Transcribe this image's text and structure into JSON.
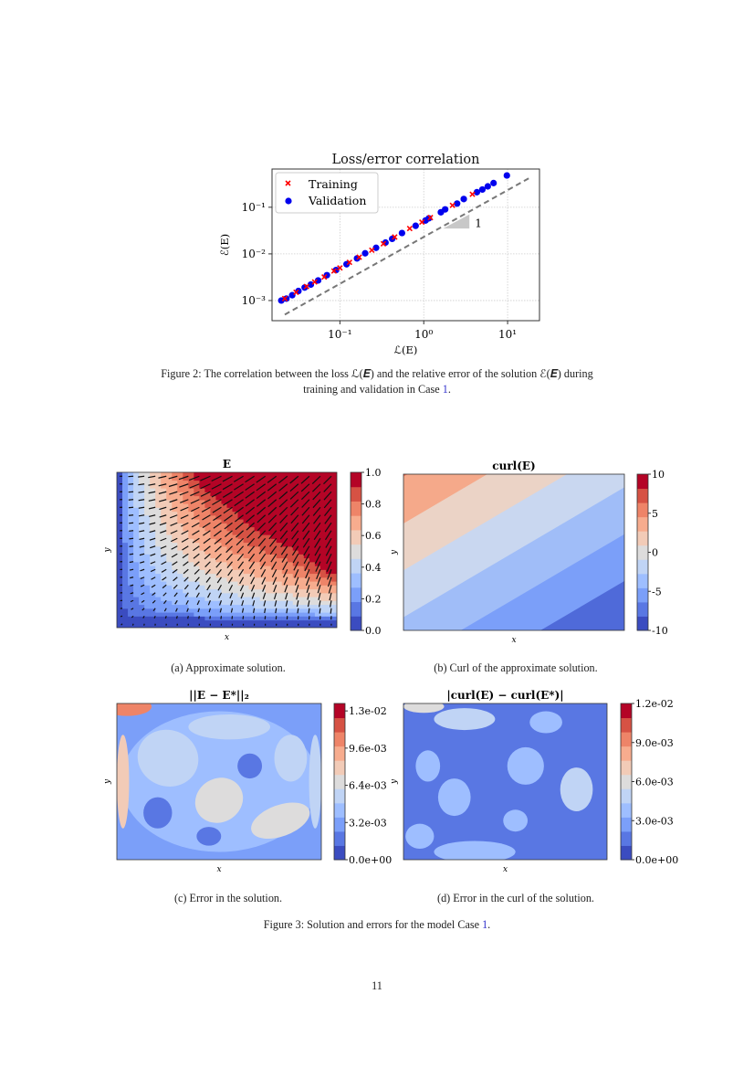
{
  "figure2": {
    "caption_prefix": "Figure 2: The correlation between the loss ℒ(𝑬) and the relative error of the solution ℰ(𝑬) during",
    "caption_line2": "training and validation in Case ",
    "caption_ref": "1",
    "caption_end": "."
  },
  "chart_data": [
    {
      "type": "scatter",
      "title": "Loss/error correlation",
      "xlabel": "ℒ(E)",
      "ylabel": "ℰ(E)",
      "xscale": "log",
      "yscale": "log",
      "xlim": [
        0.0155,
        24
      ],
      "ylim": [
        0.00037,
        0.66
      ],
      "x_ticks": [
        "10⁻¹",
        "10⁰",
        "10¹"
      ],
      "y_ticks": [
        "10⁻³",
        "10⁻²",
        "10⁻¹"
      ],
      "grid": true,
      "legend": "top-left",
      "series": [
        {
          "name": "Training",
          "marker": "x",
          "color": "#ff0000",
          "x": [
            0.022,
            0.03,
            0.04,
            0.05,
            0.065,
            0.085,
            0.1,
            0.13,
            0.17,
            0.24,
            0.33,
            0.45,
            0.68,
            0.95,
            1.2,
            2.2,
            3.8
          ],
          "y": [
            0.0011,
            0.0015,
            0.002,
            0.0025,
            0.0032,
            0.0043,
            0.005,
            0.0066,
            0.0085,
            0.012,
            0.0165,
            0.023,
            0.035,
            0.048,
            0.06,
            0.11,
            0.19
          ]
        },
        {
          "name": "Validation",
          "marker": "o",
          "color": "#0000ee",
          "x": [
            0.02,
            0.023,
            0.027,
            0.032,
            0.038,
            0.045,
            0.055,
            0.07,
            0.09,
            0.12,
            0.16,
            0.2,
            0.27,
            0.35,
            0.42,
            0.55,
            0.8,
            1.05,
            1.15,
            1.6,
            1.8,
            2.5,
            3.0,
            4.3,
            5.0,
            5.8,
            6.8,
            9.8
          ],
          "y": [
            0.001,
            0.0011,
            0.0013,
            0.0016,
            0.0019,
            0.0022,
            0.0027,
            0.0035,
            0.0045,
            0.006,
            0.008,
            0.0103,
            0.0135,
            0.0175,
            0.021,
            0.028,
            0.04,
            0.052,
            0.058,
            0.078,
            0.09,
            0.12,
            0.15,
            0.21,
            0.24,
            0.28,
            0.33,
            0.48
          ]
        }
      ],
      "reference_line": {
        "style": "dashed",
        "color": "#777777",
        "x": [
          0.022,
          18
        ],
        "y": [
          0.0005,
          0.42
        ]
      },
      "slope_label": "1"
    },
    {
      "type": "heatmap",
      "title": "E",
      "xlabel": "x",
      "ylabel": "y",
      "colorbar_ticks": [
        "0.0",
        "0.2",
        "0.4",
        "0.6",
        "0.8",
        "1.0"
      ],
      "colormap": "coolwarm",
      "quiver": true
    },
    {
      "type": "heatmap",
      "title": "curl(E)",
      "xlabel": "x",
      "ylabel": "y",
      "colorbar_ticks": [
        "-10",
        "-5",
        "0",
        "5",
        "10"
      ],
      "colormap": "coolwarm"
    },
    {
      "type": "heatmap",
      "title": "||E − E*||₂",
      "xlabel": "x",
      "ylabel": "y",
      "colorbar_ticks": [
        "0.0e+00",
        "3.2e-03",
        "6.4e-03",
        "9.6e-03",
        "1.3e-02"
      ],
      "colormap": "coolwarm"
    },
    {
      "type": "heatmap",
      "title": "|curl(E) − curl(E*)|",
      "xlabel": "x",
      "ylabel": "y",
      "colorbar_ticks": [
        "0.0e+00",
        "3.0e-03",
        "6.0e-03",
        "9.0e-03",
        "1.2e-02"
      ],
      "colormap": "coolwarm"
    }
  ],
  "subcaptions": {
    "a": "(a) Approximate solution.",
    "b": "(b) Curl of the approximate solution.",
    "c": "(c) Error in the solution.",
    "d": "(d) Error in the curl of the solution."
  },
  "figure3": {
    "caption": "Figure 3: Solution and errors for the model Case ",
    "caption_ref": "1",
    "caption_end": "."
  },
  "page_number": "11"
}
